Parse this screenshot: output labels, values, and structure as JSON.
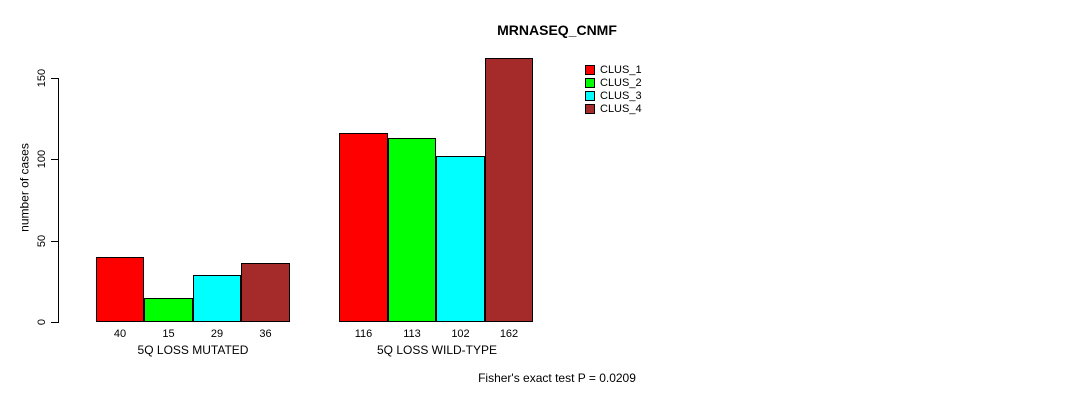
{
  "chart_data": {
    "type": "bar",
    "title": "MRNASEQ_CNMF",
    "xlabel": "",
    "ylabel": "number of cases",
    "ylim": [
      0,
      150
    ],
    "yticks": [
      0,
      50,
      100,
      150
    ],
    "grid": false,
    "legend_position": "top-right-inside",
    "categories": [
      "5Q LOSS MUTATED",
      "5Q LOSS WILD-TYPE"
    ],
    "series": [
      {
        "name": "CLUS_1",
        "color": "#ff0000",
        "values": [
          40,
          116
        ]
      },
      {
        "name": "CLUS_2",
        "color": "#00ff00",
        "values": [
          15,
          113
        ]
      },
      {
        "name": "CLUS_3",
        "color": "#00ffff",
        "values": [
          29,
          102
        ]
      },
      {
        "name": "CLUS_4",
        "color": "#a52a2a",
        "values": [
          36,
          162
        ]
      }
    ],
    "bar_value_labels": true,
    "annotation": "Fisher's exact test P = 0.0209"
  },
  "colors": {
    "background": "#ffffff",
    "axis": "#000000",
    "text": "#000000"
  }
}
